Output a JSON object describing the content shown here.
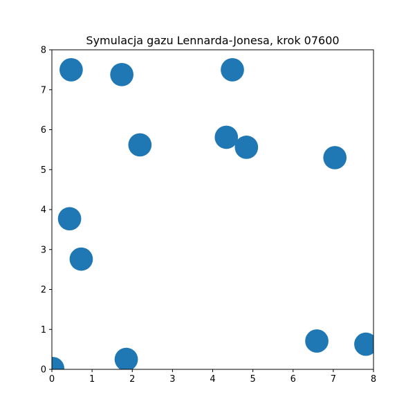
{
  "chart_data": {
    "type": "scatter",
    "title": "Symulacja gazu Lennarda-Jonesa, krok 07600",
    "xlabel": "",
    "ylabel": "",
    "xlim": [
      0,
      8
    ],
    "ylim": [
      0,
      8
    ],
    "xticks": [
      "0",
      "1",
      "2",
      "3",
      "4",
      "5",
      "6",
      "7",
      "8"
    ],
    "yticks": [
      "0",
      "1",
      "2",
      "3",
      "4",
      "5",
      "6",
      "7",
      "8"
    ],
    "grid": false,
    "point_color": "#1f77b4",
    "particle_radius": 0.5,
    "points": [
      {
        "x": 0.48,
        "y": 7.5
      },
      {
        "x": 1.74,
        "y": 7.38
      },
      {
        "x": 4.49,
        "y": 7.5
      },
      {
        "x": 2.19,
        "y": 5.62
      },
      {
        "x": 4.34,
        "y": 5.81
      },
      {
        "x": 4.84,
        "y": 5.56
      },
      {
        "x": 7.04,
        "y": 5.3
      },
      {
        "x": 0.44,
        "y": 3.77
      },
      {
        "x": 0.73,
        "y": 2.76
      },
      {
        "x": 6.59,
        "y": 0.71
      },
      {
        "x": 7.81,
        "y": 0.63
      },
      {
        "x": 1.85,
        "y": 0.25
      },
      {
        "x": 0.02,
        "y": 0.02
      }
    ]
  }
}
